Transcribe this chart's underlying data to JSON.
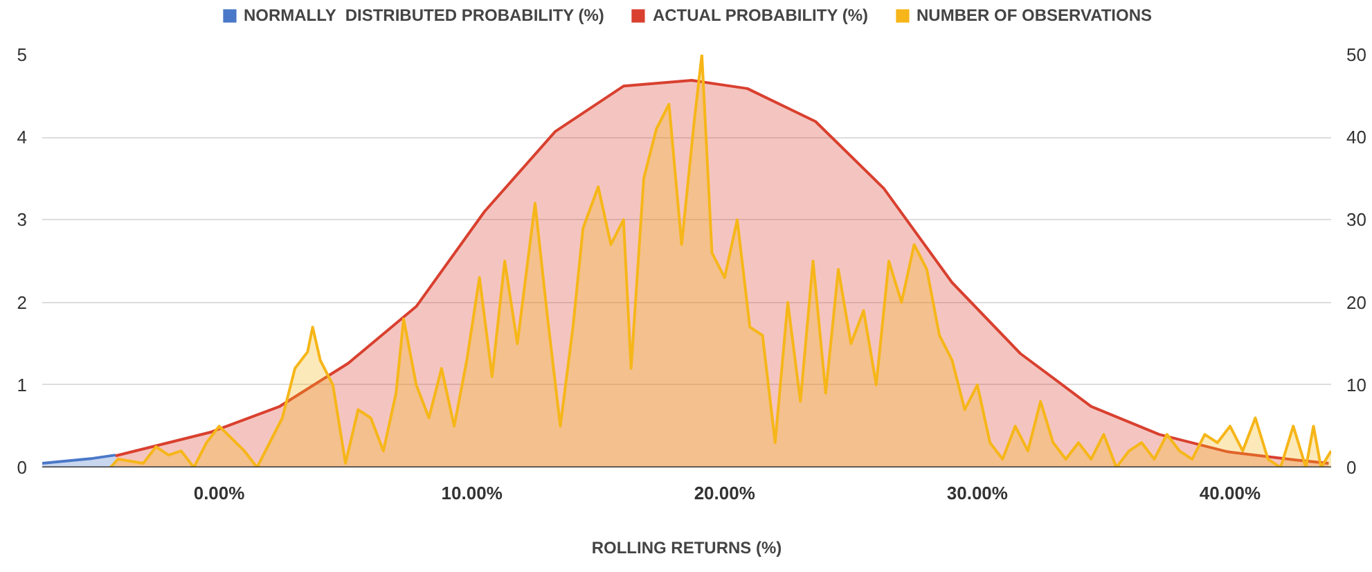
{
  "chart_data": {
    "type": "area",
    "xlabel": "ROLLING RETURNS (%)",
    "xlim": [
      -7,
      44
    ],
    "xticks": [
      {
        "value": 0,
        "label": "0.00%"
      },
      {
        "value": 10,
        "label": "10.00%"
      },
      {
        "value": 20,
        "label": "20.00%"
      },
      {
        "value": 30,
        "label": "30.00%"
      },
      {
        "value": 40,
        "label": "40.00%"
      }
    ],
    "ylim": [
      0,
      5
    ],
    "yticks": [
      0,
      1,
      2,
      3,
      4,
      5
    ],
    "y2lim": [
      0,
      50
    ],
    "y2ticks": [
      0,
      10,
      20,
      30,
      40,
      50
    ],
    "grid": "y",
    "legend": "top",
    "series": [
      {
        "name": "NORMALLY  DISTRIBUTED PROBABILITY (%)",
        "color": "#4a78c8",
        "x": [
          -7,
          -6,
          -5,
          -4.1
        ],
        "values": [
          0.05,
          0.08,
          0.11,
          0.15
        ]
      },
      {
        "name": "ACTUAL PROBABILITY (%)",
        "color": "#d9402f",
        "x": [
          -4.1,
          -0.3,
          2.4,
          5.1,
          7.8,
          10.5,
          13.3,
          16,
          18.7,
          20.9,
          23.6,
          26.3,
          29,
          31.7,
          34.5,
          37.2,
          39.9,
          42.6,
          43.9
        ],
        "values": [
          0.14,
          0.43,
          0.74,
          1.26,
          1.95,
          3.1,
          4.07,
          4.62,
          4.69,
          4.59,
          4.19,
          3.38,
          2.24,
          1.38,
          0.74,
          0.4,
          0.19,
          0.09,
          0.05
        ]
      },
      {
        "name": "NUMBER OF OBSERVATIONS",
        "color": "#f6b619",
        "axis": "y2",
        "x": [
          -4.3,
          -4,
          -3,
          -2.5,
          -2,
          -1.5,
          -1,
          -0.5,
          0,
          0.5,
          1,
          1.5,
          2,
          2.5,
          3,
          3.5,
          3.7,
          4,
          4.5,
          5,
          5.5,
          6,
          6.5,
          7,
          7.3,
          7.8,
          8.3,
          8.8,
          9.3,
          9.8,
          10.3,
          10.8,
          11.3,
          11.8,
          12.5,
          13,
          13.5,
          14,
          14.4,
          15,
          15.5,
          16,
          16.3,
          16.8,
          17.3,
          17.8,
          18.3,
          18.8,
          19.1,
          19.5,
          20,
          20.5,
          21,
          21.5,
          22,
          22.5,
          23,
          23.5,
          24,
          24.5,
          25,
          25.5,
          26,
          26.5,
          27,
          27.5,
          28,
          28.5,
          29,
          29.5,
          30,
          30.5,
          31,
          31.5,
          32,
          32.5,
          33,
          33.5,
          34,
          34.5,
          35,
          35.5,
          36,
          36.5,
          37,
          37.5,
          38,
          38.5,
          39,
          39.5,
          40,
          40.5,
          41,
          41.5,
          42,
          42.5,
          43,
          43.3,
          43.6,
          44
        ],
        "values": [
          0,
          1,
          0.5,
          2.5,
          1.5,
          2,
          0,
          3,
          5,
          3.5,
          2,
          0,
          3,
          6,
          12,
          14,
          17,
          13,
          10,
          0.5,
          7,
          6,
          2,
          9,
          18,
          10,
          6,
          12,
          5,
          13,
          23,
          11,
          25,
          15,
          32,
          18,
          5,
          17,
          29,
          34,
          27,
          30,
          12,
          35,
          41,
          44,
          27,
          42,
          50,
          26,
          23,
          30,
          17,
          16,
          3,
          20,
          8,
          25,
          9,
          24,
          15,
          19,
          10,
          25,
          20,
          27,
          24,
          16,
          13,
          7,
          10,
          3,
          1,
          5,
          2,
          8,
          3,
          1,
          3,
          1,
          4,
          0,
          2,
          3,
          1,
          4,
          2,
          1,
          4,
          3,
          5,
          2,
          6,
          1,
          0,
          5,
          0,
          5,
          0,
          2
        ]
      }
    ]
  }
}
